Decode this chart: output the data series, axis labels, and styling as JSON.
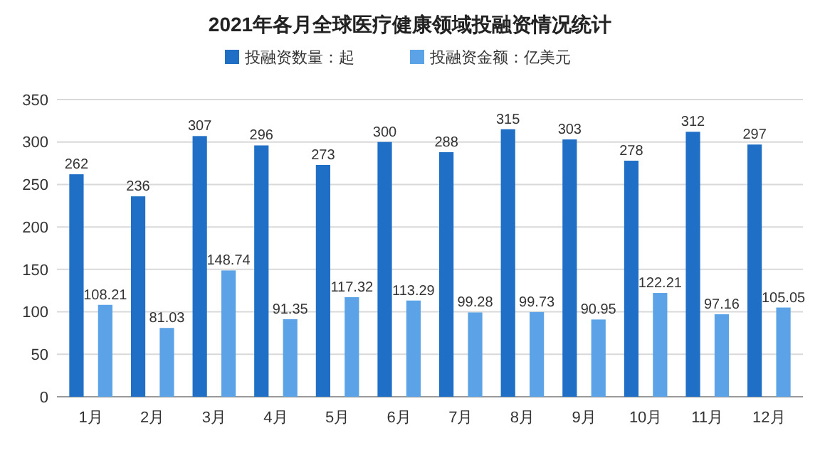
{
  "chart_data": {
    "type": "bar",
    "title": "2021年各月全球医疗健康领域投融资情况统计",
    "categories": [
      "1月",
      "2月",
      "3月",
      "4月",
      "5月",
      "6月",
      "7月",
      "8月",
      "9月",
      "10月",
      "11月",
      "12月"
    ],
    "series": [
      {
        "name": "投融资数量：起",
        "color": "#1f6fc6",
        "values": [
          262,
          236,
          307,
          296,
          273,
          300,
          288,
          315,
          303,
          278,
          312,
          297
        ]
      },
      {
        "name": "投融资金额：亿美元",
        "color": "#5ba3e6",
        "values": [
          108.21,
          81.03,
          148.74,
          91.35,
          117.32,
          113.29,
          99.28,
          99.73,
          90.95,
          122.21,
          97.16,
          105.05
        ]
      }
    ],
    "ylim": [
      0,
      350
    ],
    "yticks": [
      0,
      50,
      100,
      150,
      200,
      250,
      300,
      350
    ],
    "grid": "y",
    "legend": "top",
    "data_labels": true
  }
}
